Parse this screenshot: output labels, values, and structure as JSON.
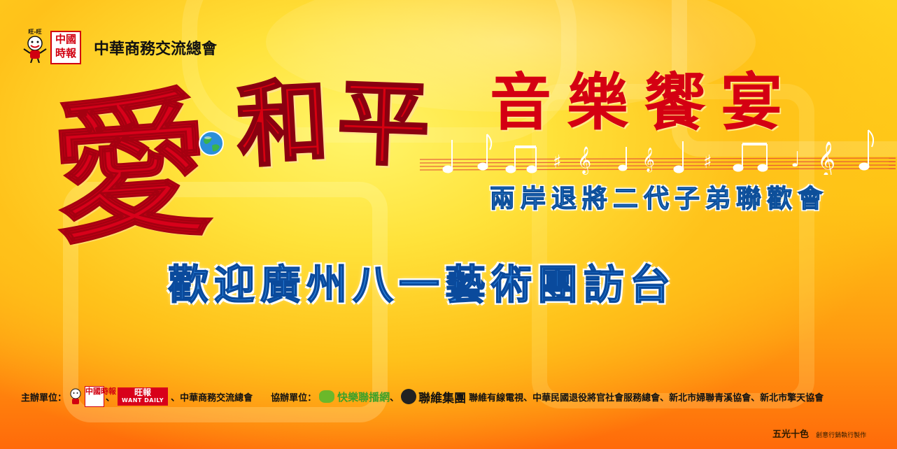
{
  "header": {
    "logo_mascot_text": "旺-旺",
    "logo_ct_text": "中國時報",
    "org_name": "中華商務交流總會"
  },
  "title": {
    "ai": "愛",
    "he": "和",
    "ping": "平",
    "music_banquet": "音樂饗宴"
  },
  "subtitle": "兩岸退將二代子弟聯歡會",
  "welcome": "歡迎廣州八一藝術團訪台",
  "footer": {
    "host_label": "主辦單位：",
    "want_daily_cn": "旺報",
    "want_daily_en": "WANT DAILY",
    "host_tail": "、中華商務交流總會",
    "co_label": "協辦單位：",
    "happy_network": "快樂聯播網",
    "sep": "、",
    "lianwei": "聯維集團",
    "co_tail": "聯維有線電視、中華民國退役將官社會服務總會、新北市婦聯青溪協會、新北市擎天協會"
  },
  "credit": {
    "brand": "五光十色",
    "note": "創意行銷執行製作"
  },
  "colors": {
    "title_red": "#d80010",
    "subtitle_blue": "#2e83d6"
  }
}
